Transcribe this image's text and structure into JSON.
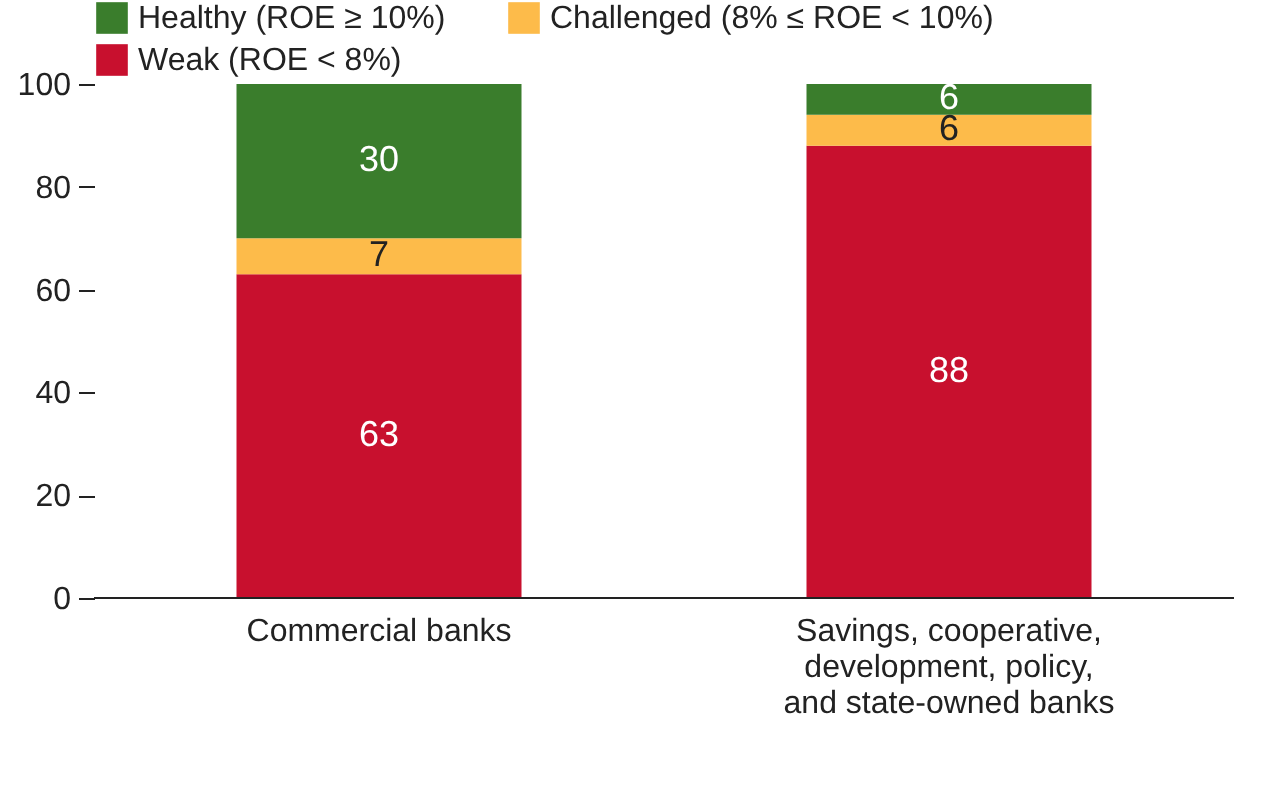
{
  "chart_data": {
    "type": "bar",
    "stacked": true,
    "categories": [
      "Commercial banks",
      "Savings, cooperative, development, policy, and state-owned banks"
    ],
    "series": [
      {
        "name": "Weak (ROE < 8%)",
        "color": "#c8102e",
        "values": [
          63,
          88
        ]
      },
      {
        "name": "Challenged (8% ≤ ROE < 10%)",
        "color": "#fdbb4a",
        "values": [
          7,
          6
        ]
      },
      {
        "name": "Healthy (ROE ≥ 10%)",
        "color": "#3a7d2c",
        "values": [
          30,
          6
        ]
      }
    ],
    "ylim": [
      0,
      100
    ],
    "yticks": [
      0,
      20,
      40,
      60,
      80,
      100
    ],
    "data_labels": true,
    "legend": "top left",
    "grid": false
  }
}
